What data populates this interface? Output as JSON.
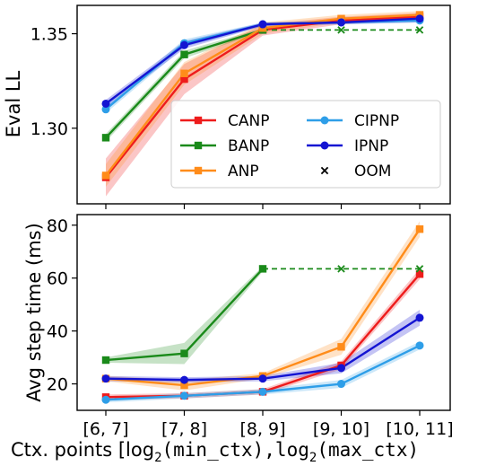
{
  "chart_data": [
    {
      "type": "line",
      "ylabel": "Eval LL",
      "ylim": [
        1.26,
        1.365
      ],
      "yticks": [
        1.3,
        1.35
      ],
      "ytick_labels": [
        "1.30",
        "1.35"
      ],
      "categories": [
        "[6, 7]",
        "[7, 8]",
        "[8, 9]",
        "[9, 10]",
        "[10, 11]"
      ],
      "series": [
        {
          "name": "CANP",
          "color": "#ee1c1c",
          "marker": "square",
          "values": [
            1.274,
            1.326,
            1.352,
            1.357,
            1.359
          ],
          "band": [
            0.01,
            0.008,
            0.003,
            0.002,
            0.002
          ]
        },
        {
          "name": "BANP",
          "color": "#1a8a1a",
          "marker": "square",
          "values": [
            1.295,
            1.339,
            1.352,
            null,
            null
          ],
          "band": [
            0.002,
            0.002,
            0.001,
            0,
            0
          ],
          "oom_from": 2,
          "oom_value": 1.352
        },
        {
          "name": "ANP",
          "color": "#ff8c1a",
          "marker": "square",
          "values": [
            1.275,
            1.329,
            1.353,
            1.358,
            1.36
          ],
          "band": [
            0.006,
            0.006,
            0.003,
            0.002,
            0.002
          ]
        },
        {
          "name": "CIPNP",
          "color": "#2e9ee8",
          "marker": "circle",
          "values": [
            1.31,
            1.345,
            1.355,
            1.356,
            1.357
          ],
          "band": [
            0.002,
            0.002,
            0.001,
            0.001,
            0.001
          ]
        },
        {
          "name": "IPNP",
          "color": "#1414d2",
          "marker": "circle",
          "values": [
            1.313,
            1.344,
            1.355,
            1.356,
            1.358
          ],
          "band": [
            0.002,
            0.002,
            0.001,
            0.001,
            0.002
          ]
        }
      ],
      "legend": {
        "placement": "lower-right",
        "entries": [
          {
            "name": "CANP",
            "color": "#ee1c1c",
            "marker": "square"
          },
          {
            "name": "BANP",
            "color": "#1a8a1a",
            "marker": "square"
          },
          {
            "name": "ANP",
            "color": "#ff8c1a",
            "marker": "square"
          },
          {
            "name": "CIPNP",
            "color": "#2e9ee8",
            "marker": "circle"
          },
          {
            "name": "IPNP",
            "color": "#1414d2",
            "marker": "circle"
          },
          {
            "name": "OOM",
            "color": "#000000",
            "marker": "x"
          }
        ]
      },
      "grid": false
    },
    {
      "type": "line",
      "ylabel": "Avg step time (ms)",
      "ylim": [
        10,
        84
      ],
      "yticks": [
        20,
        40,
        60,
        80
      ],
      "ytick_labels": [
        "20",
        "40",
        "60",
        "80"
      ],
      "xlabel_prefix": "Ctx. points [log",
      "xlabel_sub": "2",
      "xlabel_mid": "(min_ctx),log",
      "xlabel_sub2": "2",
      "xlabel_suffix": "(max_ctx)",
      "categories": [
        "[6, 7]",
        "[7, 8]",
        "[8, 9]",
        "[9, 10]",
        "[10, 11]"
      ],
      "series": [
        {
          "name": "CANP",
          "color": "#ee1c1c",
          "marker": "square",
          "values": [
            15,
            15.5,
            17,
            27,
            61.5
          ],
          "band": [
            1,
            1,
            1,
            1.5,
            2
          ]
        },
        {
          "name": "BANP",
          "color": "#1a8a1a",
          "marker": "square",
          "values": [
            29,
            31.5,
            63.5,
            null,
            null
          ],
          "band": [
            1,
            4,
            1,
            0,
            0
          ],
          "oom_from": 2,
          "oom_value": 63.5
        },
        {
          "name": "ANP",
          "color": "#ff8c1a",
          "marker": "square",
          "values": [
            22,
            19.5,
            23,
            34,
            78.5
          ],
          "band": [
            1,
            2,
            1,
            3,
            3
          ]
        },
        {
          "name": "CIPNP",
          "color": "#2e9ee8",
          "marker": "circle",
          "values": [
            14,
            15.5,
            17,
            20,
            34.5
          ],
          "band": [
            1,
            1,
            1,
            1.5,
            1.5
          ]
        },
        {
          "name": "IPNP",
          "color": "#1414d2",
          "marker": "circle",
          "values": [
            22,
            21.5,
            22,
            26,
            45
          ],
          "band": [
            1,
            1,
            1,
            2,
            3
          ]
        }
      ],
      "grid": false
    }
  ]
}
